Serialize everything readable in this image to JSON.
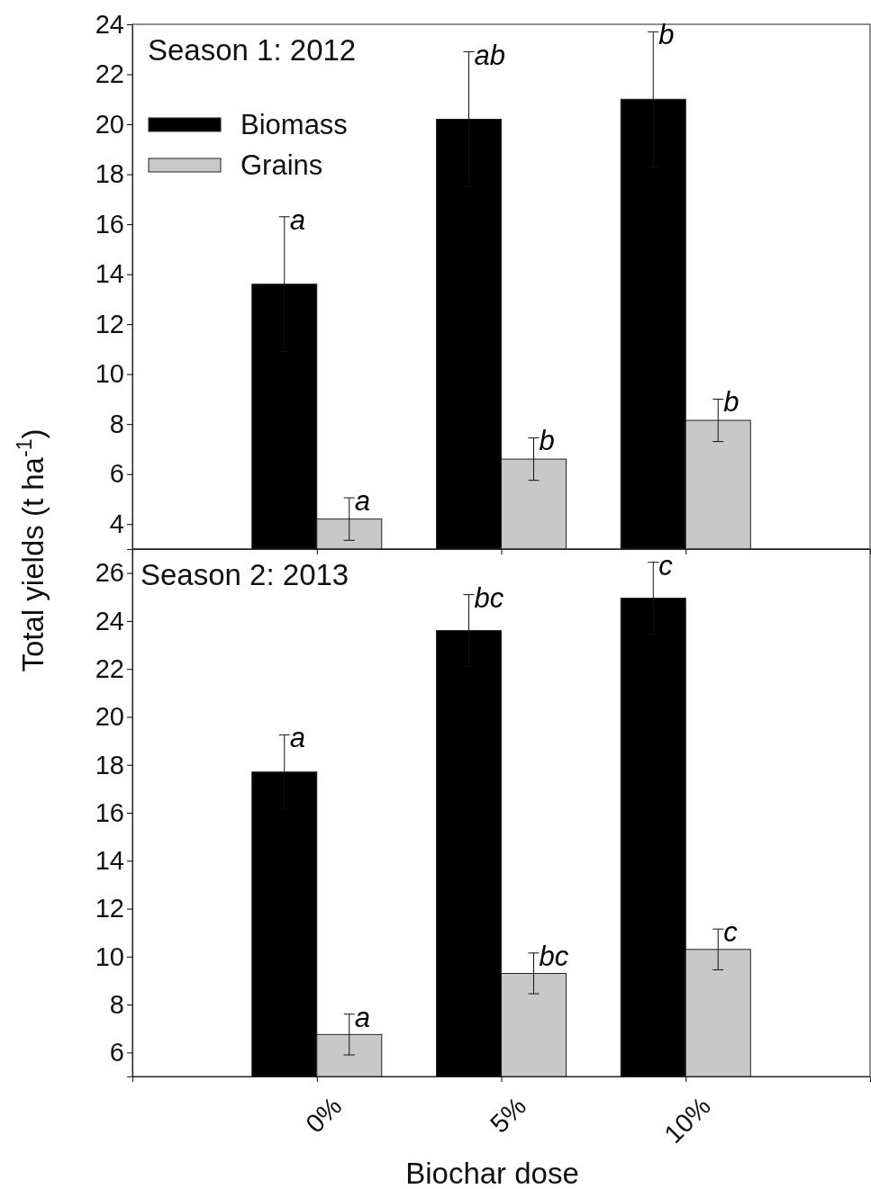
{
  "chart_data": [
    {
      "type": "bar",
      "title": "Season 1: 2012",
      "ylabel": "Total yields (t ha$^{-1}$)",
      "categories": [
        "0%",
        "5%",
        "10%"
      ],
      "ylim": [
        3,
        24
      ],
      "yticks": [
        4,
        6,
        8,
        10,
        12,
        14,
        16,
        18,
        20,
        22,
        24
      ],
      "tick_labels": "y",
      "legend": "top left",
      "grid": false,
      "series": [
        {
          "name": "Biomass",
          "color": "#000000",
          "values": [
            13.6,
            20.2,
            21.0
          ],
          "errors": [
            2.7,
            2.7,
            2.7
          ]
        },
        {
          "name": "Grains",
          "color": "#c8c8c8",
          "values": [
            4.2,
            6.6,
            8.15
          ],
          "errors": [
            0.85,
            0.85,
            0.85
          ]
        }
      ],
      "annotations": [
        {
          "text": "a",
          "x": "0%",
          "y": 13.6
        },
        {
          "text": "ab",
          "x": "5%",
          "y": 20.2
        },
        {
          "text": "b",
          "x": "10%",
          "y": 21.0
        },
        {
          "text": "a",
          "x": "0%",
          "y": 4.2
        },
        {
          "text": "b",
          "x": "5%",
          "y": 6.6
        },
        {
          "text": "b",
          "x": "10%",
          "y": 8.15
        }
      ]
    },
    {
      "type": "bar",
      "title": "Season 2: 2013",
      "xlabel": "Biochar dose",
      "categories": [
        "0%",
        "5%",
        "10%"
      ],
      "ylim": [
        5,
        27
      ],
      "yticks": [
        6,
        8,
        10,
        12,
        14,
        16,
        18,
        20,
        22,
        24,
        26
      ],
      "grid": false,
      "series": [
        {
          "color": "#000000",
          "values": [
            17.7,
            23.6,
            24.95
          ],
          "errors": [
            1.55,
            1.5,
            1.5
          ]
        },
        {
          "color": "#c8c8c8",
          "values": [
            6.75,
            9.3,
            10.3
          ],
          "errors": [
            0.85,
            0.85,
            0.85
          ]
        }
      ],
      "annotations": [
        {
          "text": "a",
          "x": "0%",
          "y": 17.7
        },
        {
          "text": "bc",
          "x": "5%",
          "y": 23.6
        },
        {
          "text": "c",
          "x": "10%",
          "y": 24.95
        },
        {
          "text": "a",
          "x": "0%",
          "y": 6.75
        },
        {
          "text": "bc",
          "x": "5%",
          "y": 9.3
        },
        {
          "text": "c",
          "x": "10%",
          "y": 10.3
        }
      ]
    }
  ]
}
